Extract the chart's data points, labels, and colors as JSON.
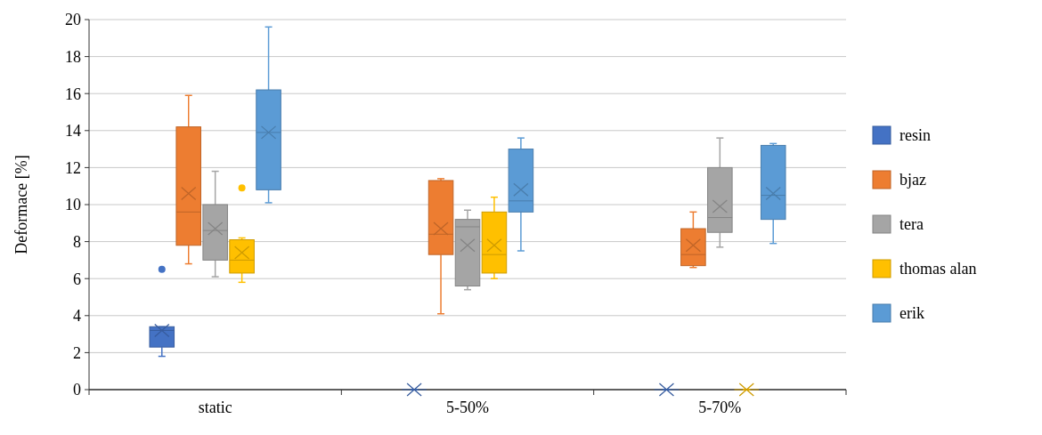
{
  "chart_data": {
    "type": "box",
    "ylabel": "Deformace [%]",
    "categories": [
      "static",
      "5-50%",
      "5-70%"
    ],
    "ylim": [
      0,
      20
    ],
    "yticks": [
      0,
      2,
      4,
      6,
      8,
      10,
      12,
      14,
      16,
      18,
      20
    ],
    "grid": "y",
    "legend": "right",
    "series": [
      {
        "name": "resin",
        "color": "#4472c4",
        "boxes": [
          {
            "low": 1.8,
            "q1": 2.3,
            "median": 3.2,
            "q3": 3.4,
            "high": 3.4,
            "mean": 3.2,
            "outliers": [
              6.5
            ]
          },
          {
            "low": 0,
            "q1": 0,
            "median": 0,
            "q3": 0,
            "high": 0,
            "mean": 0
          },
          {
            "low": 0,
            "q1": 0,
            "median": 0,
            "q3": 0,
            "high": 0,
            "mean": 0
          }
        ]
      },
      {
        "name": "bjaz",
        "color": "#ed7d31",
        "boxes": [
          {
            "low": 6.8,
            "q1": 7.8,
            "median": 9.6,
            "q3": 14.2,
            "high": 15.9,
            "mean": 10.6
          },
          {
            "low": 4.1,
            "q1": 7.3,
            "median": 8.4,
            "q3": 11.3,
            "high": 11.4,
            "mean": 8.7
          },
          {
            "low": 6.6,
            "q1": 6.7,
            "median": 7.3,
            "q3": 8.7,
            "high": 9.6,
            "mean": 7.8
          }
        ]
      },
      {
        "name": "tera",
        "color": "#a5a5a5",
        "boxes": [
          {
            "low": 6.1,
            "q1": 7.0,
            "median": 8.6,
            "q3": 10.0,
            "high": 11.8,
            "mean": 8.7
          },
          {
            "low": 5.4,
            "q1": 5.6,
            "median": 8.8,
            "q3": 9.2,
            "high": 9.7,
            "mean": 7.8
          },
          {
            "low": 7.7,
            "q1": 8.5,
            "median": 9.3,
            "q3": 12.0,
            "high": 13.6,
            "mean": 9.9
          }
        ]
      },
      {
        "name": "thomas alan",
        "color": "#ffc000",
        "boxes": [
          {
            "low": 5.8,
            "q1": 6.3,
            "median": 7.0,
            "q3": 8.1,
            "high": 8.2,
            "mean": 7.4,
            "outliers": [
              10.9
            ]
          },
          {
            "low": 6.0,
            "q1": 6.3,
            "median": 7.3,
            "q3": 9.6,
            "high": 10.4,
            "mean": 7.8
          },
          {
            "low": 0,
            "q1": 0,
            "median": 0,
            "q3": 0,
            "high": 0,
            "mean": 0
          }
        ]
      },
      {
        "name": "erik",
        "color": "#5b9bd5",
        "boxes": [
          {
            "low": 10.1,
            "q1": 10.8,
            "median": 13.9,
            "q3": 16.2,
            "high": 19.6,
            "mean": 13.9
          },
          {
            "low": 7.5,
            "q1": 9.6,
            "median": 10.2,
            "q3": 13.0,
            "high": 13.6,
            "mean": 10.8
          },
          {
            "low": 7.9,
            "q1": 9.2,
            "median": 10.5,
            "q3": 13.2,
            "high": 13.3,
            "mean": 10.6
          }
        ]
      }
    ]
  }
}
